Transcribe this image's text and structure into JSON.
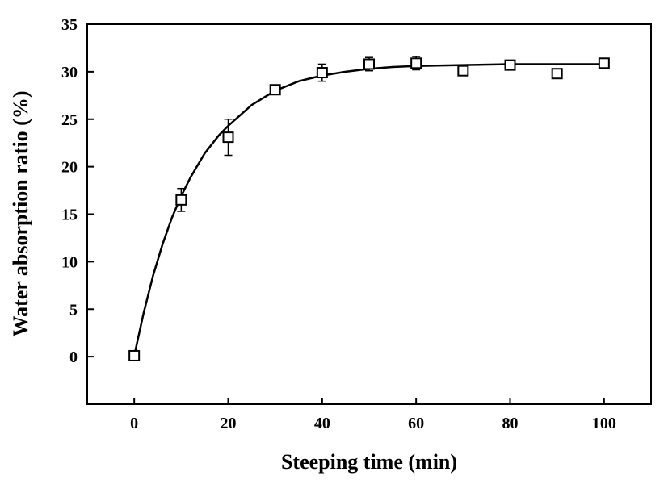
{
  "chart_data": {
    "type": "scatter",
    "title": "",
    "xlabel": "Steeping time (min)",
    "ylabel": "Water absorption ratio (%)",
    "xlim": [
      -10,
      110
    ],
    "ylim": [
      -5,
      35
    ],
    "xticks": [
      "0",
      "20",
      "40",
      "60",
      "80",
      "100"
    ],
    "yticks": [
      "0",
      "5",
      "10",
      "15",
      "20",
      "25",
      "30",
      "35"
    ],
    "grid": false,
    "legend": "none",
    "marker": "open-square",
    "color": "#000000",
    "series": [
      {
        "x": [
          0,
          10,
          20,
          30,
          40,
          50,
          60,
          70,
          80,
          90,
          100
        ],
        "y": [
          0.1,
          16.5,
          23.1,
          28.1,
          29.9,
          30.8,
          30.9,
          30.1,
          30.7,
          29.8,
          30.9
        ],
        "error": [
          0,
          1.2,
          1.9,
          0.5,
          0.9,
          0.7,
          0.7,
          0.3,
          0.2,
          0.2,
          0.2
        ]
      }
    ],
    "fit_curve": {
      "x": [
        0,
        2,
        4,
        6,
        8,
        10,
        12,
        15,
        18,
        20,
        25,
        30,
        35,
        40,
        45,
        50,
        55,
        60,
        70,
        80,
        90,
        100
      ],
      "y": [
        0.1,
        4.6,
        8.5,
        11.8,
        14.6,
        16.9,
        18.9,
        21.4,
        23.3,
        24.3,
        26.5,
        28.0,
        29.0,
        29.6,
        30.0,
        30.3,
        30.5,
        30.6,
        30.7,
        30.8,
        30.8,
        30.8
      ]
    }
  }
}
